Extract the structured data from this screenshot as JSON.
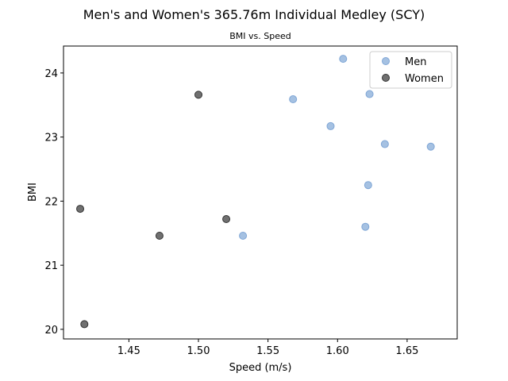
{
  "chart_data": {
    "type": "scatter",
    "title": "Men's and Women's 365.76m Individual Medley (SCY)",
    "subtitle": "BMI vs. Speed",
    "xlabel": "Speed (m/s)",
    "ylabel": "BMI",
    "xlim": [
      1.403,
      1.686
    ],
    "ylim": [
      19.85,
      24.42
    ],
    "xticks": [
      1.45,
      1.5,
      1.55,
      1.6,
      1.65
    ],
    "xtick_labels": [
      "1.45",
      "1.50",
      "1.55",
      "1.60",
      "1.65"
    ],
    "yticks": [
      20,
      21,
      22,
      23,
      24
    ],
    "ytick_labels": [
      "20",
      "21",
      "22",
      "23",
      "24"
    ],
    "grid": false,
    "legend_position": "top-right",
    "series": [
      {
        "name": "Men",
        "color": "#7fa6d6",
        "points": [
          {
            "x": 1.604,
            "y": 24.22
          },
          {
            "x": 1.568,
            "y": 23.59
          },
          {
            "x": 1.623,
            "y": 23.67
          },
          {
            "x": 1.595,
            "y": 23.17
          },
          {
            "x": 1.634,
            "y": 22.89
          },
          {
            "x": 1.667,
            "y": 22.85
          },
          {
            "x": 1.622,
            "y": 22.25
          },
          {
            "x": 1.62,
            "y": 21.6
          },
          {
            "x": 1.532,
            "y": 21.46
          }
        ]
      },
      {
        "name": "Women",
        "color": "#333333",
        "points": [
          {
            "x": 1.5,
            "y": 23.66
          },
          {
            "x": 1.415,
            "y": 21.88
          },
          {
            "x": 1.52,
            "y": 21.72
          },
          {
            "x": 1.472,
            "y": 21.46
          },
          {
            "x": 1.418,
            "y": 20.08
          }
        ]
      }
    ]
  }
}
